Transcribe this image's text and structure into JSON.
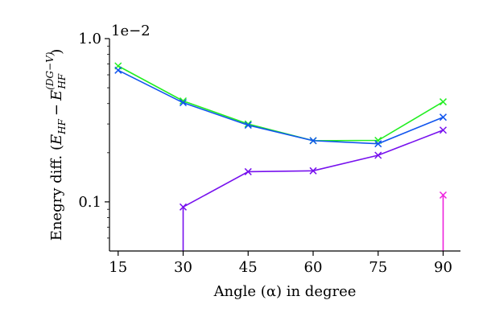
{
  "chart_data": {
    "type": "line",
    "title": "",
    "xlabel": "Angle (α) in degree",
    "ylabel": "Enegry diff. (E_HF − E_HF^(DG−V))",
    "ylabel_parts": {
      "prefix": "Enegry diff. (",
      "e1": "E",
      "sub1": "HF",
      "minus": "−",
      "e2": "E",
      "sub2": "HF",
      "sup2": "(DG−V)",
      "suffix": ")"
    },
    "y_offset_label": "1e−2",
    "yscale": "log",
    "ylim": [
      0.05,
      1.0
    ],
    "xlim": [
      13,
      94
    ],
    "x_ticks": [
      15,
      30,
      45,
      60,
      75,
      90
    ],
    "x_tick_labels": [
      "15",
      "30",
      "45",
      "60",
      "75",
      "90"
    ],
    "y_ticks": [
      0.1,
      1.0
    ],
    "y_tick_labels": [
      "0.1",
      "1.0"
    ],
    "grid": false,
    "series": [
      {
        "color": "#22ee22",
        "x": [
          15,
          30,
          45,
          60,
          75,
          90
        ],
        "y": [
          0.68,
          0.415,
          0.3,
          0.237,
          0.238,
          0.41
        ]
      },
      {
        "color": "#1155ee",
        "x": [
          15,
          30,
          45,
          60,
          75,
          90
        ],
        "y": [
          0.64,
          0.405,
          0.295,
          0.237,
          0.227,
          0.33
        ]
      },
      {
        "color": "#7711ee",
        "x": [
          30,
          45,
          60,
          75,
          90
        ],
        "y": [
          0.093,
          0.153,
          0.155,
          0.193,
          0.275
        ],
        "drop_to_axis_at_first": true
      },
      {
        "color": "#ee22dd",
        "x": [
          90
        ],
        "y": [
          0.11
        ],
        "drop_to_axis_at_first": true
      }
    ]
  }
}
